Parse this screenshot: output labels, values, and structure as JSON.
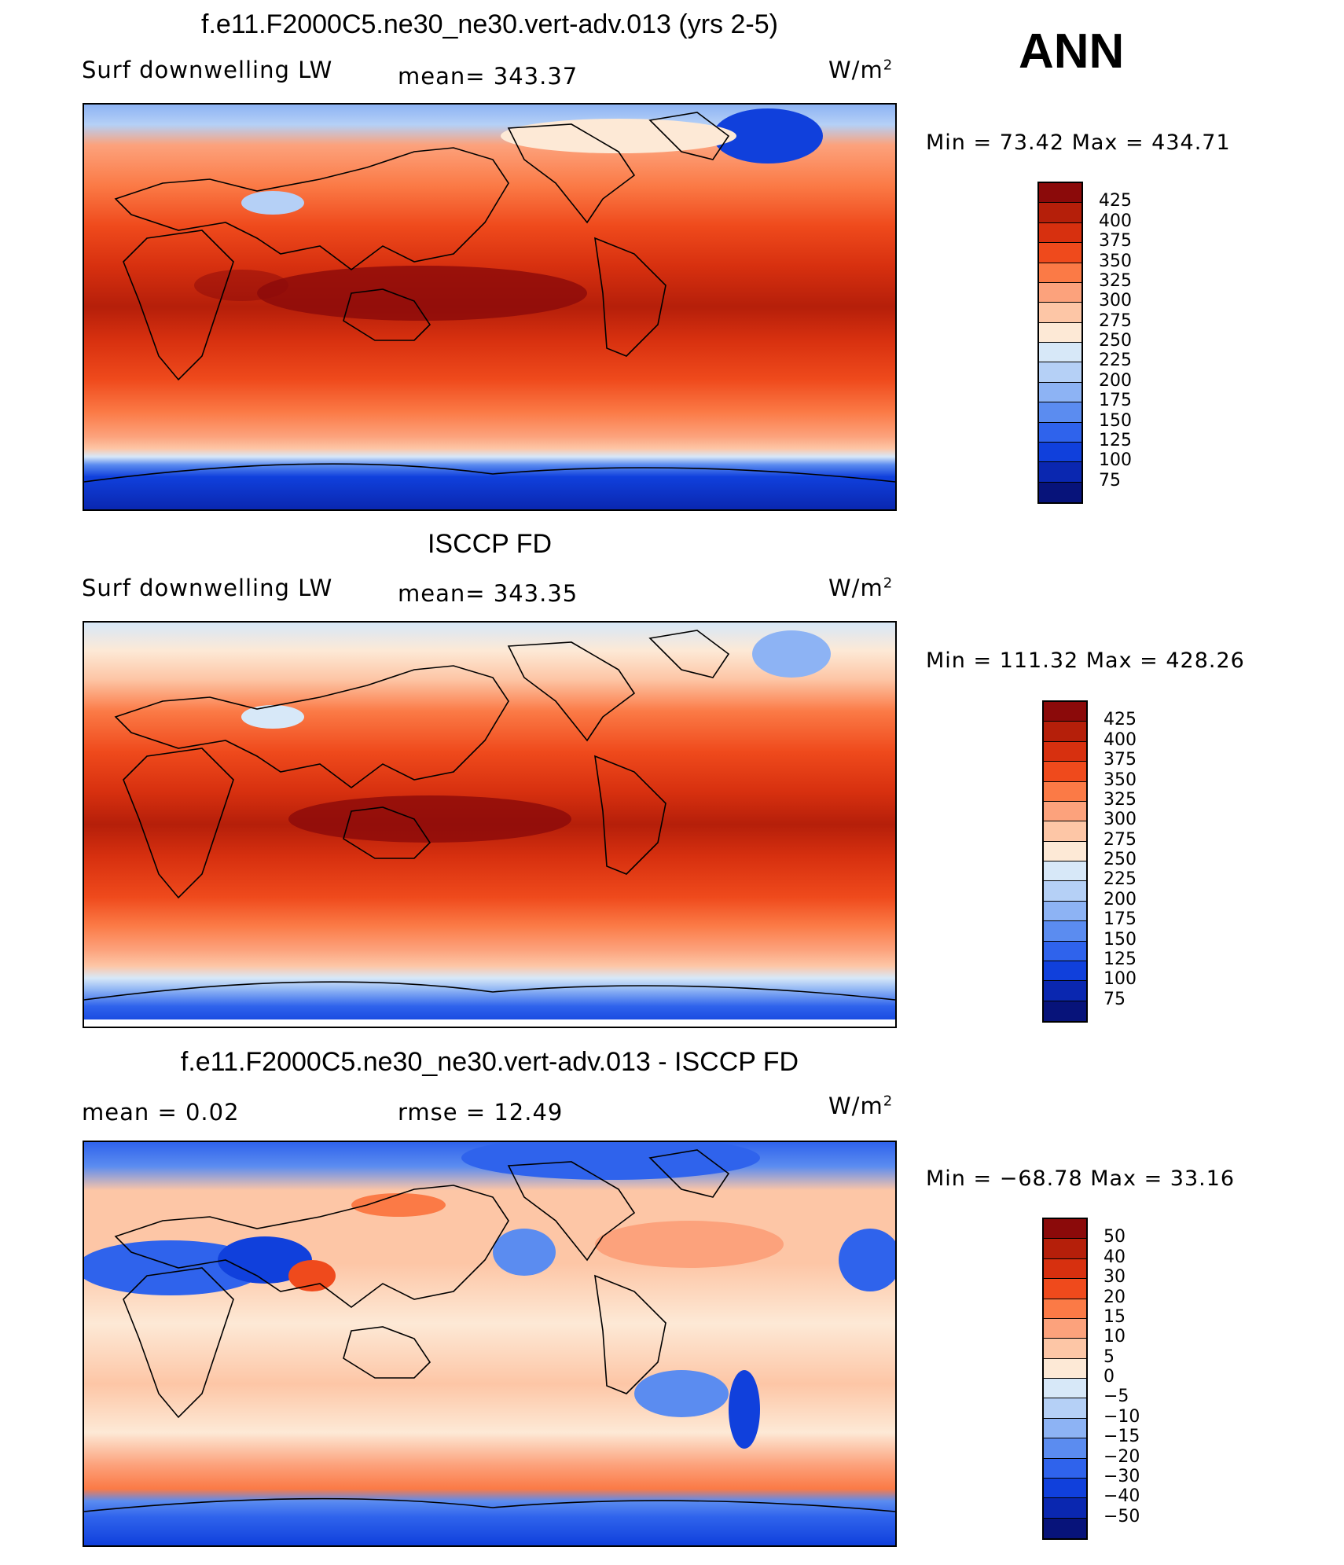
{
  "header": {
    "ann_label": "ANN"
  },
  "panels": [
    {
      "title": "f.e11.F2000C5.ne30_ne30.vert-adv.013 (yrs 2-5)",
      "left_label": "Surf downwelling LW",
      "center_label": "mean=  343.37",
      "units": "W/m",
      "units_sup": "2",
      "minmax": "Min =   73.42  Max  =  434.71",
      "colorbar_ticks": [
        "425",
        "400",
        "375",
        "350",
        "325",
        "300",
        "275",
        "250",
        "225",
        "200",
        "175",
        "150",
        "125",
        "100",
        "75"
      ],
      "colorbar_colors": [
        "#8b0a0a",
        "#b51f0a",
        "#d7300f",
        "#ef4a1c",
        "#fb7a46",
        "#fca27c",
        "#fdc6a6",
        "#fde9d6",
        "#d7e8f8",
        "#b5d0f6",
        "#8db3f4",
        "#5b8cf0",
        "#2f63ec",
        "#1040dc",
        "#0a27b0",
        "#07137a"
      ]
    },
    {
      "title": "ISCCP FD",
      "left_label": "Surf downwelling LW",
      "center_label": "mean=  343.35",
      "units": "W/m",
      "units_sup": "2",
      "minmax": "Min  =  111.32  Max  =  428.26",
      "colorbar_ticks": [
        "425",
        "400",
        "375",
        "350",
        "325",
        "300",
        "275",
        "250",
        "225",
        "200",
        "175",
        "150",
        "125",
        "100",
        "75"
      ],
      "colorbar_colors": [
        "#8b0a0a",
        "#b51f0a",
        "#d7300f",
        "#ef4a1c",
        "#fb7a46",
        "#fca27c",
        "#fdc6a6",
        "#fde9d6",
        "#d7e8f8",
        "#b5d0f6",
        "#8db3f4",
        "#5b8cf0",
        "#2f63ec",
        "#1040dc",
        "#0a27b0",
        "#07137a"
      ]
    },
    {
      "title": "f.e11.F2000C5.ne30_ne30.vert-adv.013 - ISCCP FD",
      "left_label": "mean =      0.02",
      "center_label": "rmse  =    12.49",
      "units": "W/m",
      "units_sup": "2",
      "minmax": "Min  =  −68.78  Max  =     33.16",
      "colorbar_ticks": [
        "50",
        "40",
        "30",
        "20",
        "15",
        "10",
        "5",
        "0",
        "−5",
        "−10",
        "−15",
        "−20",
        "−30",
        "−40",
        "−50"
      ],
      "colorbar_colors": [
        "#8b0a0a",
        "#b51f0a",
        "#d7300f",
        "#ef4a1c",
        "#fb7a46",
        "#fca27c",
        "#fdc6a6",
        "#fde9d6",
        "#d7e8f8",
        "#b5d0f6",
        "#8db3f4",
        "#5b8cf0",
        "#2f63ec",
        "#1040dc",
        "#0a27b0",
        "#07137a"
      ]
    }
  ]
}
